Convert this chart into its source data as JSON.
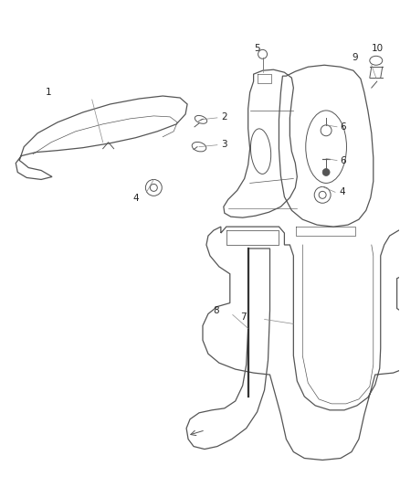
{
  "background_color": "#ffffff",
  "line_color": "#555555",
  "label_color": "#222222",
  "fig_width": 4.38,
  "fig_height": 5.33,
  "dpi": 100
}
